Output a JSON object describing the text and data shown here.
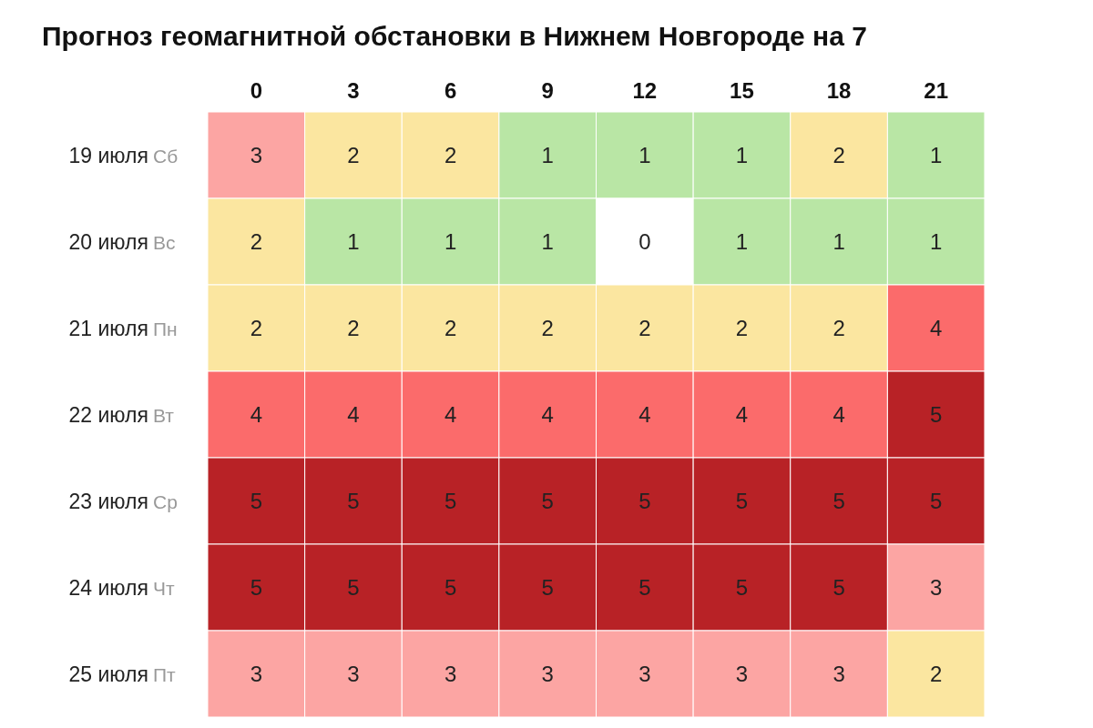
{
  "chart_data": {
    "type": "heatmap",
    "title": "Прогноз геомагнитной обстановки в Нижнем Новгороде на 7",
    "categories": [
      "0",
      "3",
      "6",
      "9",
      "12",
      "15",
      "18",
      "21"
    ],
    "y_categories": [
      "19 июля",
      "20 июля",
      "21 июля",
      "22 июля",
      "23 июля",
      "24 июля",
      "25 июля"
    ],
    "y2_categories": [
      "Сб",
      "Вс",
      "Пн",
      "Вт",
      "Ср",
      "Чт",
      "Пт"
    ],
    "data_labels": true,
    "colors": [
      "#ffffff",
      "#b9e6a5",
      "#fbe6a0",
      "#fca5a3",
      "#fb6b6b",
      "#b82226"
    ],
    "cells": [
      [
        3,
        2,
        2,
        1,
        1,
        1,
        2,
        1
      ],
      [
        2,
        1,
        1,
        1,
        0,
        1,
        1,
        1
      ],
      [
        2,
        2,
        2,
        2,
        2,
        2,
        2,
        4
      ],
      [
        4,
        4,
        4,
        4,
        4,
        4,
        4,
        5
      ],
      [
        5,
        5,
        5,
        5,
        5,
        5,
        5,
        5
      ],
      [
        5,
        5,
        5,
        5,
        5,
        5,
        5,
        3
      ],
      [
        3,
        3,
        3,
        3,
        3,
        3,
        3,
        2
      ]
    ]
  }
}
